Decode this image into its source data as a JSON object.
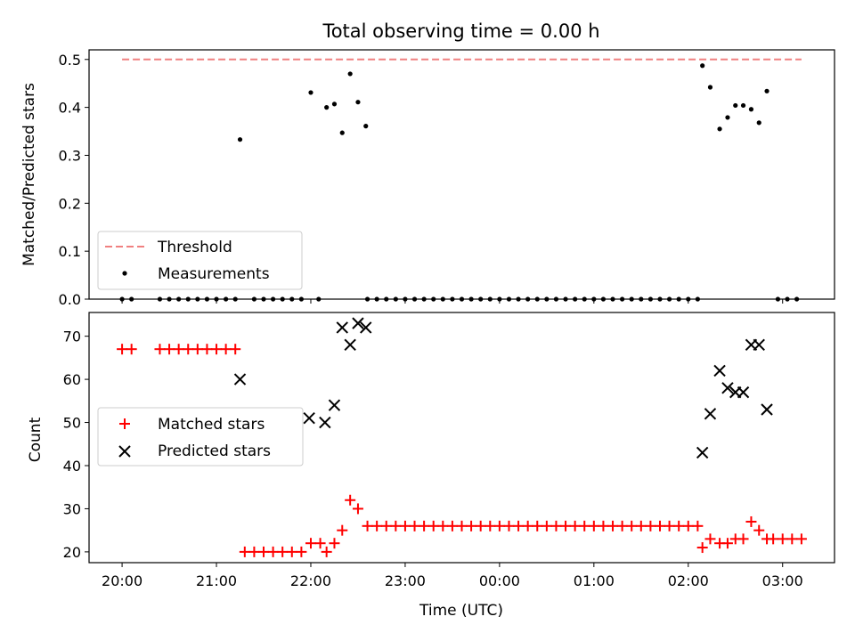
{
  "figure": {
    "title": "Total observing time = 0.00 h",
    "xlabel": "Time (UTC)"
  },
  "chart_data": [
    {
      "type": "scatter",
      "ylabel": "Matched/Predicted stars",
      "xlim": [
        19.65,
        27.55
      ],
      "ylim": [
        0,
        0.52
      ],
      "yticks": [
        0.0,
        0.1,
        0.2,
        0.3,
        0.4,
        0.5
      ],
      "ytick_labels": [
        "0.0",
        "0.1",
        "0.2",
        "0.3",
        "0.4",
        "0.5"
      ],
      "legend": {
        "placement": "lower-left",
        "entries": [
          "Threshold",
          "Measurements"
        ]
      },
      "threshold": {
        "name": "Threshold",
        "value": 0.5,
        "x_range": [
          20.0,
          27.2
        ],
        "color": "#f08080"
      },
      "series": [
        {
          "name": "Measurements",
          "color": "#000000",
          "points": [
            [
              20.0,
              0
            ],
            [
              20.1,
              0
            ],
            [
              20.4,
              0
            ],
            [
              20.5,
              0
            ],
            [
              20.6,
              0
            ],
            [
              20.7,
              0
            ],
            [
              20.8,
              0
            ],
            [
              20.9,
              0
            ],
            [
              21.0,
              0
            ],
            [
              21.1,
              0
            ],
            [
              21.2,
              0
            ],
            [
              21.25,
              0.333
            ],
            [
              21.4,
              0
            ],
            [
              21.5,
              0
            ],
            [
              21.6,
              0
            ],
            [
              21.7,
              0
            ],
            [
              21.8,
              0
            ],
            [
              21.9,
              0
            ],
            [
              22.0,
              0.431
            ],
            [
              22.083,
              0
            ],
            [
              22.167,
              0.4
            ],
            [
              22.25,
              0.407
            ],
            [
              22.333,
              0.347
            ],
            [
              22.417,
              0.47
            ],
            [
              22.5,
              0.411
            ],
            [
              22.583,
              0.361
            ],
            [
              22.6,
              0
            ],
            [
              22.7,
              0
            ],
            [
              22.8,
              0
            ],
            [
              22.9,
              0
            ],
            [
              23.0,
              0
            ],
            [
              23.1,
              0
            ],
            [
              23.2,
              0
            ],
            [
              23.3,
              0
            ],
            [
              23.4,
              0
            ],
            [
              23.5,
              0
            ],
            [
              23.6,
              0
            ],
            [
              23.7,
              0
            ],
            [
              23.8,
              0
            ],
            [
              23.9,
              0
            ],
            [
              24.0,
              0
            ],
            [
              24.1,
              0
            ],
            [
              24.2,
              0
            ],
            [
              24.3,
              0
            ],
            [
              24.4,
              0
            ],
            [
              24.5,
              0
            ],
            [
              24.6,
              0
            ],
            [
              24.7,
              0
            ],
            [
              24.8,
              0
            ],
            [
              24.9,
              0
            ],
            [
              25.0,
              0
            ],
            [
              25.1,
              0
            ],
            [
              25.2,
              0
            ],
            [
              25.3,
              0
            ],
            [
              25.4,
              0
            ],
            [
              25.5,
              0
            ],
            [
              25.6,
              0
            ],
            [
              25.7,
              0
            ],
            [
              25.8,
              0
            ],
            [
              25.9,
              0
            ],
            [
              26.0,
              0
            ],
            [
              26.1,
              0
            ],
            [
              26.15,
              0.487
            ],
            [
              26.233,
              0.442
            ],
            [
              26.333,
              0.355
            ],
            [
              26.417,
              0.379
            ],
            [
              26.5,
              0.404
            ],
            [
              26.583,
              0.404
            ],
            [
              26.667,
              0.396
            ],
            [
              26.75,
              0.368
            ],
            [
              26.833,
              0.434
            ],
            [
              26.95,
              0
            ],
            [
              27.05,
              0
            ],
            [
              27.15,
              0
            ]
          ]
        }
      ]
    },
    {
      "type": "scatter",
      "ylabel": "Count",
      "xlabel": "Time (UTC)",
      "xlim": [
        19.65,
        27.55
      ],
      "ylim": [
        17.5,
        75.5
      ],
      "yticks": [
        20,
        30,
        40,
        50,
        60,
        70
      ],
      "ytick_labels": [
        "20",
        "30",
        "40",
        "50",
        "60",
        "70"
      ],
      "xticks": [
        20,
        21,
        22,
        23,
        24,
        25,
        26,
        27
      ],
      "xtick_labels": [
        "20:00",
        "21:00",
        "22:00",
        "23:00",
        "00:00",
        "01:00",
        "02:00",
        "03:00"
      ],
      "legend": {
        "placement": "center-left",
        "entries": [
          "Matched stars",
          "Predicted stars"
        ]
      },
      "series": [
        {
          "name": "Matched stars",
          "marker": "plus",
          "color": "#ff0000",
          "points": [
            [
              20.0,
              67
            ],
            [
              20.1,
              67
            ],
            [
              20.4,
              67
            ],
            [
              20.5,
              67
            ],
            [
              20.6,
              67
            ],
            [
              20.7,
              67
            ],
            [
              20.8,
              67
            ],
            [
              20.9,
              67
            ],
            [
              21.0,
              67
            ],
            [
              21.1,
              67
            ],
            [
              21.2,
              67
            ],
            [
              21.3,
              20
            ],
            [
              21.4,
              20
            ],
            [
              21.5,
              20
            ],
            [
              21.6,
              20
            ],
            [
              21.7,
              20
            ],
            [
              21.8,
              20
            ],
            [
              21.9,
              20
            ],
            [
              22.0,
              22
            ],
            [
              22.1,
              22
            ],
            [
              22.167,
              20
            ],
            [
              22.25,
              22
            ],
            [
              22.333,
              25
            ],
            [
              22.417,
              32
            ],
            [
              22.5,
              30
            ],
            [
              22.6,
              26
            ],
            [
              22.7,
              26
            ],
            [
              22.8,
              26
            ],
            [
              22.9,
              26
            ],
            [
              23.0,
              26
            ],
            [
              23.1,
              26
            ],
            [
              23.2,
              26
            ],
            [
              23.3,
              26
            ],
            [
              23.4,
              26
            ],
            [
              23.5,
              26
            ],
            [
              23.6,
              26
            ],
            [
              23.7,
              26
            ],
            [
              23.8,
              26
            ],
            [
              23.9,
              26
            ],
            [
              24.0,
              26
            ],
            [
              24.1,
              26
            ],
            [
              24.2,
              26
            ],
            [
              24.3,
              26
            ],
            [
              24.4,
              26
            ],
            [
              24.5,
              26
            ],
            [
              24.6,
              26
            ],
            [
              24.7,
              26
            ],
            [
              24.8,
              26
            ],
            [
              24.9,
              26
            ],
            [
              25.0,
              26
            ],
            [
              25.1,
              26
            ],
            [
              25.2,
              26
            ],
            [
              25.3,
              26
            ],
            [
              25.4,
              26
            ],
            [
              25.5,
              26
            ],
            [
              25.6,
              26
            ],
            [
              25.7,
              26
            ],
            [
              25.8,
              26
            ],
            [
              25.9,
              26
            ],
            [
              26.0,
              26
            ],
            [
              26.1,
              26
            ],
            [
              26.15,
              21
            ],
            [
              26.233,
              23
            ],
            [
              26.333,
              22
            ],
            [
              26.417,
              22
            ],
            [
              26.5,
              23
            ],
            [
              26.583,
              23
            ],
            [
              26.667,
              27
            ],
            [
              26.75,
              25
            ],
            [
              26.833,
              23
            ],
            [
              26.9,
              23
            ],
            [
              27.0,
              23
            ],
            [
              27.1,
              23
            ],
            [
              27.2,
              23
            ]
          ]
        },
        {
          "name": "Predicted stars",
          "marker": "x",
          "color": "#000000",
          "points": [
            [
              21.25,
              60
            ],
            [
              21.983,
              51
            ],
            [
              22.15,
              50
            ],
            [
              22.25,
              54
            ],
            [
              22.333,
              72
            ],
            [
              22.417,
              68
            ],
            [
              22.5,
              73
            ],
            [
              22.583,
              72
            ],
            [
              26.15,
              43
            ],
            [
              26.233,
              52
            ],
            [
              26.333,
              62
            ],
            [
              26.417,
              58
            ],
            [
              26.5,
              57
            ],
            [
              26.583,
              57
            ],
            [
              26.667,
              68
            ],
            [
              26.75,
              68
            ],
            [
              26.833,
              53
            ]
          ]
        }
      ]
    }
  ]
}
